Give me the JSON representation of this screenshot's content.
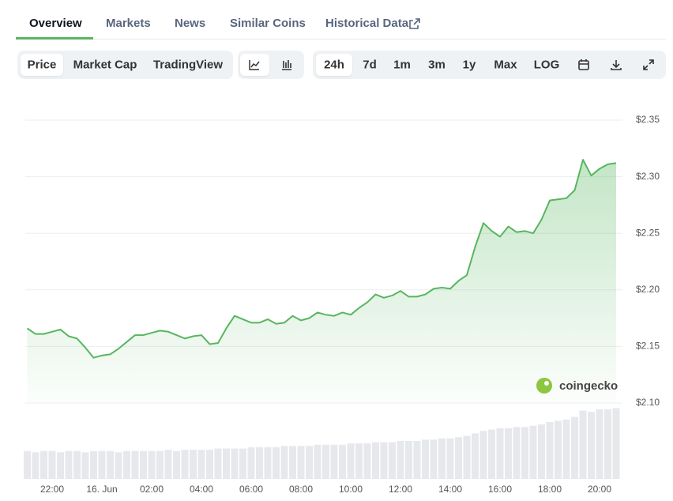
{
  "tabs": [
    "Overview",
    "Markets",
    "News",
    "Similar Coins",
    "Historical Data"
  ],
  "chart_tabs": [
    "Price",
    "Market Cap",
    "TradingView"
  ],
  "ranges": [
    "24h",
    "7d",
    "1m",
    "3m",
    "1y",
    "Max",
    "LOG"
  ],
  "watermark": "coingecko",
  "chart_data": {
    "type": "line",
    "categories": [
      null,
      null,
      null,
      "22:00",
      null,
      null,
      null,
      null,
      null,
      "16. Jun",
      null,
      null,
      null,
      null,
      null,
      "02:00",
      null,
      null,
      null,
      null,
      null,
      "04:00",
      null,
      null,
      null,
      null,
      null,
      "06:00",
      null,
      null,
      null,
      null,
      null,
      "08:00",
      null,
      null,
      null,
      null,
      null,
      "10:00",
      null,
      null,
      null,
      null,
      null,
      "12:00",
      null,
      null,
      null,
      null,
      null,
      "14:00",
      null,
      null,
      null,
      null,
      null,
      "16:00",
      null,
      null,
      null,
      null,
      null,
      "18:00",
      null,
      null,
      null,
      null,
      null,
      "20:00",
      null,
      null
    ],
    "values": [
      2.166,
      2.161,
      2.161,
      2.163,
      2.165,
      2.159,
      2.157,
      2.149,
      2.14,
      2.142,
      2.143,
      2.148,
      2.154,
      2.16,
      2.16,
      2.162,
      2.164,
      2.163,
      2.16,
      2.157,
      2.159,
      2.16,
      2.152,
      2.153,
      2.166,
      2.177,
      2.174,
      2.171,
      2.171,
      2.174,
      2.17,
      2.171,
      2.177,
      2.173,
      2.175,
      2.18,
      2.178,
      2.177,
      2.18,
      2.178,
      2.184,
      2.189,
      2.196,
      2.193,
      2.195,
      2.199,
      2.194,
      2.194,
      2.196,
      2.201,
      2.202,
      2.201,
      2.208,
      2.213,
      2.238,
      2.259,
      2.252,
      2.247,
      2.256,
      2.251,
      2.252,
      2.25,
      2.262,
      2.279,
      2.28,
      2.281,
      2.288,
      2.315,
      2.301,
      2.307,
      2.311,
      2.312
    ],
    "color": "#57b65f",
    "volume_values": [
      22,
      21,
      22,
      22,
      21,
      22,
      22,
      21,
      22,
      22,
      22,
      21,
      22,
      22,
      22,
      22,
      22,
      23,
      22,
      23,
      23,
      23,
      23,
      24,
      24,
      24,
      24,
      25,
      25,
      25,
      25,
      26,
      26,
      26,
      26,
      27,
      27,
      27,
      27,
      28,
      28,
      28,
      29,
      29,
      29,
      30,
      30,
      30,
      31,
      31,
      32,
      32,
      33,
      34,
      36,
      38,
      39,
      40,
      40,
      41,
      41,
      42,
      43,
      45,
      46,
      47,
      49,
      54,
      53,
      55,
      55,
      56
    ],
    "volume_color": "#e6e8ec",
    "volume_lim": [
      0,
      60
    ],
    "ylim": [
      2.1,
      2.35
    ],
    "yticks": [
      {
        "value": 2.1,
        "label": "$2.10"
      },
      {
        "value": 2.15,
        "label": "$2.15"
      },
      {
        "value": 2.2,
        "label": "$2.20"
      },
      {
        "value": 2.25,
        "label": "$2.25"
      },
      {
        "value": 2.3,
        "label": "$2.30"
      },
      {
        "value": 2.35,
        "label": "$2.35"
      }
    ],
    "grid": true
  }
}
